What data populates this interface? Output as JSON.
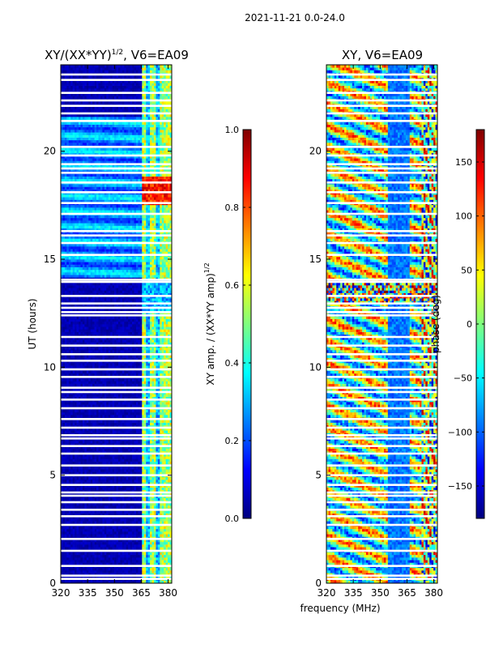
{
  "figure": {
    "suptitle": "2021-11-21 0.0-24.0",
    "shared_xlabel": "frequency (MHz)"
  },
  "chart_data": [
    {
      "type": "heatmap",
      "title_main": "XY/(XX*YY)",
      "title_sup": "1/2",
      "title_rest": ", V6=EA09",
      "xlabel": "",
      "ylabel": "UT (hours)",
      "xlim": [
        320,
        382
      ],
      "ylim": [
        0,
        24
      ],
      "x_ticks": [
        320,
        335,
        350,
        365,
        380
      ],
      "y_ticks": [
        0,
        5,
        10,
        15,
        20
      ],
      "colormap": "jet",
      "colorbar": {
        "label_main": "XY amp. / (XX*YY amp)",
        "label_sup": "1/2",
        "range": [
          0.0,
          1.0
        ],
        "ticks": [
          "0.0",
          "0.2",
          "0.4",
          "0.6",
          "0.8",
          "1.0"
        ],
        "tick_values": [
          0.0,
          0.2,
          0.4,
          0.6,
          0.8,
          1.0
        ]
      }
    },
    {
      "type": "heatmap",
      "title_main": "XY, V6=EA09",
      "xlabel": "frequency (MHz)",
      "ylabel": "",
      "xlim": [
        320,
        382
      ],
      "ylim": [
        0,
        24
      ],
      "x_ticks": [
        320,
        335,
        350,
        365,
        380
      ],
      "y_ticks": [
        0,
        5,
        10,
        15,
        20
      ],
      "colormap": "jet",
      "colorbar": {
        "label_main": "phase (deg)",
        "range": [
          -180,
          180
        ],
        "ticks": [
          "150",
          "100",
          "50",
          "0",
          "−50",
          "−100",
          "−150"
        ],
        "tick_values": [
          150,
          100,
          50,
          0,
          -50,
          -100,
          -150
        ]
      }
    }
  ]
}
